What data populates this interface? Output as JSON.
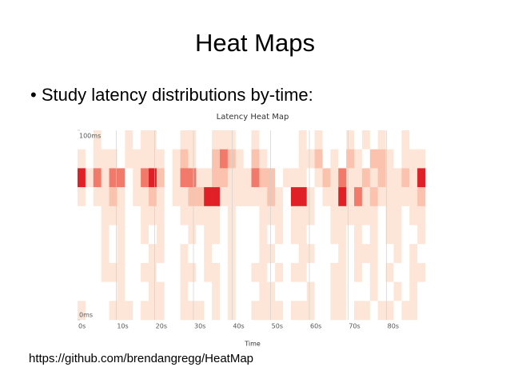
{
  "slide": {
    "title": "Heat Maps",
    "bullet": "Study latency distributions by-time:",
    "footer": "https://github.com/brendangregg/HeatMap"
  },
  "chart_data": {
    "type": "heatmap",
    "title": "Latency Heat Map",
    "x_label": "Time",
    "xlim": [
      0,
      90
    ],
    "xticks": [
      {
        "value": 0,
        "label": "0s"
      },
      {
        "value": 10,
        "label": "10s"
      },
      {
        "value": 20,
        "label": "20s"
      },
      {
        "value": 30,
        "label": "30s"
      },
      {
        "value": 40,
        "label": "40s"
      },
      {
        "value": 50,
        "label": "50s"
      },
      {
        "value": 60,
        "label": "60s"
      },
      {
        "value": 70,
        "label": "70s"
      },
      {
        "value": 80,
        "label": "80s"
      }
    ],
    "ylim": [
      0,
      100
    ],
    "yticks": [
      {
        "value": 100,
        "label": "100ms"
      },
      {
        "value": 0,
        "label": "0ms"
      }
    ],
    "colorscale": [
      "#ffffff",
      "#fde6d8",
      "#fbc3ad",
      "#f27a6b",
      "#e01f26"
    ],
    "values": [
      [
        0,
        0,
        1,
        0,
        0,
        0,
        1,
        0,
        1,
        1,
        0,
        0,
        0,
        1,
        1,
        0,
        0,
        1,
        1,
        1,
        0,
        0,
        1,
        0,
        0,
        0,
        0,
        0,
        1,
        0,
        1,
        0,
        0,
        0,
        1,
        0,
        1,
        0,
        1,
        0,
        0,
        1,
        0,
        0
      ],
      [
        1,
        0,
        1,
        1,
        1,
        0,
        1,
        1,
        1,
        1,
        1,
        0,
        1,
        2,
        1,
        0,
        0,
        2,
        3,
        2,
        1,
        0,
        2,
        1,
        0,
        0,
        0,
        0,
        1,
        1,
        2,
        0,
        1,
        0,
        2,
        1,
        0,
        2,
        2,
        1,
        0,
        1,
        1,
        1
      ],
      [
        4,
        1,
        3,
        1,
        3,
        3,
        0,
        1,
        3,
        4,
        2,
        0,
        1,
        3,
        3,
        1,
        1,
        2,
        2,
        1,
        1,
        1,
        3,
        2,
        2,
        0,
        1,
        1,
        1,
        0,
        1,
        2,
        1,
        3,
        1,
        1,
        2,
        1,
        2,
        1,
        1,
        2,
        1,
        4
      ],
      [
        1,
        0,
        1,
        1,
        2,
        1,
        0,
        1,
        1,
        2,
        1,
        0,
        1,
        1,
        2,
        2,
        4,
        4,
        1,
        1,
        1,
        1,
        1,
        1,
        2,
        1,
        0,
        4,
        4,
        1,
        0,
        1,
        1,
        4,
        1,
        3,
        1,
        2,
        1,
        1,
        1,
        1,
        1,
        2
      ],
      [
        0,
        0,
        0,
        1,
        1,
        1,
        0,
        0,
        1,
        1,
        1,
        0,
        0,
        1,
        1,
        1,
        1,
        1,
        0,
        1,
        0,
        0,
        0,
        1,
        1,
        1,
        0,
        1,
        1,
        1,
        0,
        0,
        1,
        1,
        1,
        1,
        1,
        1,
        0,
        1,
        1,
        0,
        1,
        1
      ],
      [
        0,
        0,
        0,
        1,
        0,
        1,
        0,
        0,
        1,
        0,
        1,
        0,
        0,
        0,
        1,
        0,
        1,
        1,
        0,
        1,
        0,
        0,
        0,
        1,
        0,
        1,
        0,
        1,
        1,
        0,
        0,
        0,
        1,
        1,
        0,
        1,
        0,
        1,
        0,
        1,
        1,
        0,
        0,
        1
      ],
      [
        0,
        0,
        0,
        1,
        0,
        1,
        0,
        0,
        0,
        1,
        1,
        0,
        0,
        1,
        0,
        0,
        1,
        0,
        0,
        1,
        0,
        0,
        0,
        1,
        1,
        0,
        0,
        0,
        1,
        1,
        0,
        0,
        0,
        1,
        0,
        1,
        1,
        1,
        0,
        0,
        1,
        0,
        1,
        0
      ],
      [
        0,
        0,
        0,
        1,
        1,
        1,
        0,
        0,
        1,
        1,
        0,
        0,
        0,
        1,
        1,
        0,
        1,
        1,
        0,
        1,
        0,
        0,
        1,
        1,
        0,
        1,
        0,
        1,
        1,
        0,
        0,
        0,
        1,
        1,
        0,
        1,
        0,
        1,
        0,
        1,
        0,
        0,
        1,
        1
      ],
      [
        0,
        0,
        0,
        0,
        0,
        1,
        0,
        0,
        0,
        1,
        1,
        0,
        0,
        1,
        0,
        0,
        0,
        1,
        0,
        1,
        0,
        0,
        0,
        1,
        1,
        0,
        0,
        0,
        0,
        1,
        0,
        0,
        1,
        1,
        0,
        0,
        0,
        1,
        0,
        0,
        1,
        0,
        1,
        0
      ],
      [
        1,
        0,
        0,
        0,
        1,
        1,
        1,
        0,
        1,
        1,
        1,
        0,
        0,
        1,
        1,
        1,
        0,
        1,
        0,
        1,
        0,
        0,
        1,
        1,
        1,
        1,
        0,
        1,
        1,
        1,
        0,
        0,
        1,
        1,
        0,
        1,
        1,
        0,
        1,
        1,
        0,
        1,
        1,
        0
      ]
    ]
  }
}
